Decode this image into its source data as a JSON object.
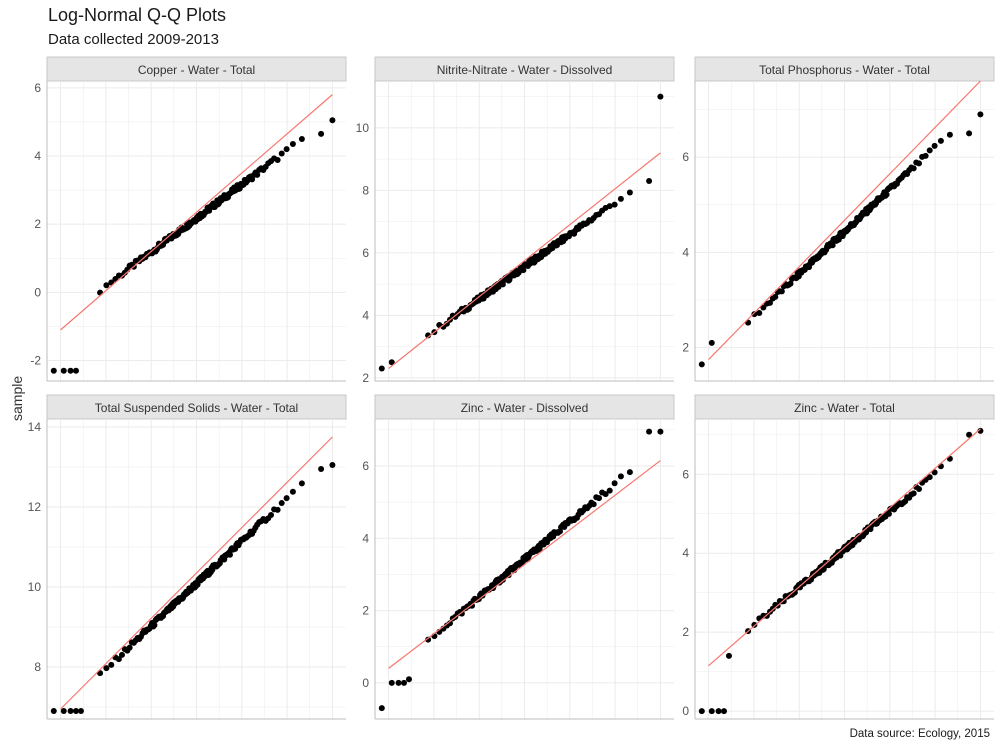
{
  "title": "Log-Normal Q-Q Plots",
  "subtitle": "Data collected 2009-2013",
  "y_axis_label": "sample",
  "caption": "Data source: Ecology, 2015",
  "colors": {
    "points": "#000000",
    "line": "#f8766d",
    "strip_bg": "#e5e5e5",
    "grid": "#ebebeb"
  },
  "chart_data": [
    {
      "type": "scatter",
      "facet": "Copper - Water - Total",
      "ylim": [
        -2.6,
        6.2
      ],
      "yticks": [
        -2,
        0,
        2,
        4,
        6
      ],
      "qq_line": {
        "y_start": -1.1,
        "y_end": 5.8
      },
      "points": {
        "low_outliers": [
          -2.3,
          -2.3,
          -2.3,
          -2.3
        ],
        "body_start": -0.15,
        "body_end": 4.4,
        "high": [
          4.65,
          5.05
        ]
      }
    },
    {
      "type": "scatter",
      "facet": "Nitrite-Nitrate - Water - Dissolved",
      "ylim": [
        1.9,
        11.5
      ],
      "yticks": [
        2,
        4,
        6,
        8,
        10
      ],
      "qq_line": {
        "y_start": 2.3,
        "y_end": 9.2
      },
      "points": {
        "low_outliers": [
          2.3,
          2.5
        ],
        "body_start": 3.05,
        "body_end": 7.95,
        "high": [
          8.3,
          11.0
        ]
      }
    },
    {
      "type": "scatter",
      "facet": "Total Phosphorus - Water - Total",
      "ylim": [
        1.3,
        7.6
      ],
      "yticks": [
        2,
        4,
        6
      ],
      "qq_line": {
        "y_start": 1.75,
        "y_end": 7.6
      },
      "points": {
        "low_outliers": [
          1.65,
          2.1
        ],
        "body_start": 2.2,
        "body_end": 6.45,
        "high": [
          6.5,
          6.9
        ]
      }
    },
    {
      "type": "scatter",
      "facet": "Total Suspended Solids - Water - Total",
      "ylim": [
        6.7,
        14.2
      ],
      "yticks": [
        8,
        10,
        12,
        14
      ],
      "qq_line": {
        "y_start": 6.95,
        "y_end": 13.75
      },
      "points": {
        "low_outliers": [
          6.9,
          6.9,
          6.9,
          6.9,
          6.9
        ],
        "body_start": 7.35,
        "body_end": 12.6,
        "high": [
          12.95,
          13.05
        ]
      }
    },
    {
      "type": "scatter",
      "facet": "Zinc - Water - Dissolved",
      "ylim": [
        -1.0,
        7.3
      ],
      "yticks": [
        0,
        2,
        4,
        6
      ],
      "qq_line": {
        "y_start": 0.4,
        "y_end": 6.15
      },
      "points": {
        "low_outliers": [
          -0.7,
          0.0,
          0.0,
          0.0,
          0.1
        ],
        "body_start": 0.8,
        "body_end": 6.5,
        "high": [
          6.95,
          6.95
        ]
      }
    },
    {
      "type": "scatter",
      "facet": "Zinc - Water - Total",
      "ylim": [
        -0.2,
        7.4
      ],
      "yticks": [
        0,
        2,
        4,
        6
      ],
      "qq_line": {
        "y_start": 1.15,
        "y_end": 7.15
      },
      "points": {
        "low_outliers": [
          0.0,
          0.0,
          0.0,
          0.0,
          1.4
        ],
        "body_start": 1.75,
        "body_end": 6.55,
        "high": [
          7.0,
          7.1
        ]
      }
    }
  ]
}
